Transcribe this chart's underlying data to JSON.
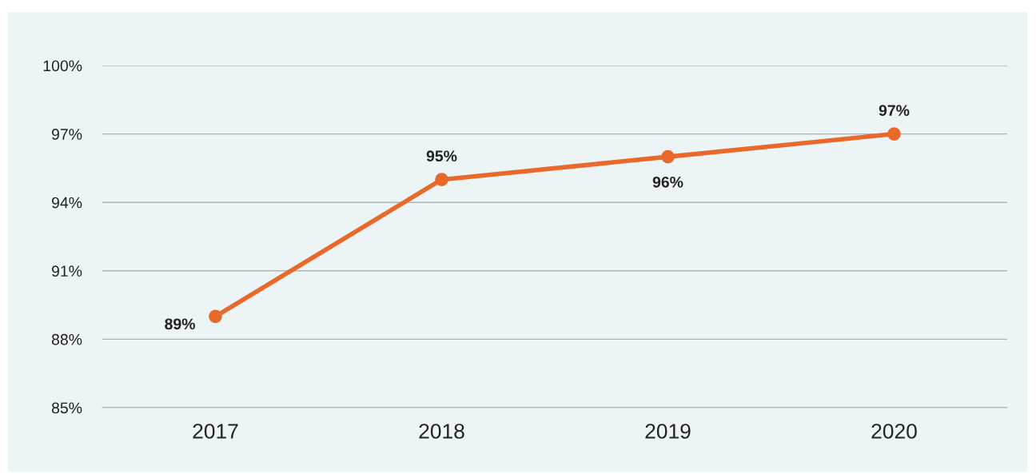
{
  "chart_data": {
    "type": "line",
    "categories": [
      "2017",
      "2018",
      "2019",
      "2020"
    ],
    "series": [
      {
        "color": "#e8692a",
        "values": [
          89,
          95,
          96,
          97
        ],
        "value_labels": [
          "89%",
          "95%",
          "96%",
          "97%"
        ]
      }
    ],
    "ylim": [
      85,
      100
    ],
    "yticks": [
      {
        "value": 85,
        "label": "85%"
      },
      {
        "value": 88,
        "label": "88%"
      },
      {
        "value": 91,
        "label": "91%"
      },
      {
        "value": 94,
        "label": "94%"
      },
      {
        "value": 97,
        "label": "97%"
      },
      {
        "value": 100,
        "label": "100%"
      }
    ],
    "grid": "y",
    "marker": "circle",
    "line_style": "solid",
    "legend": false
  }
}
